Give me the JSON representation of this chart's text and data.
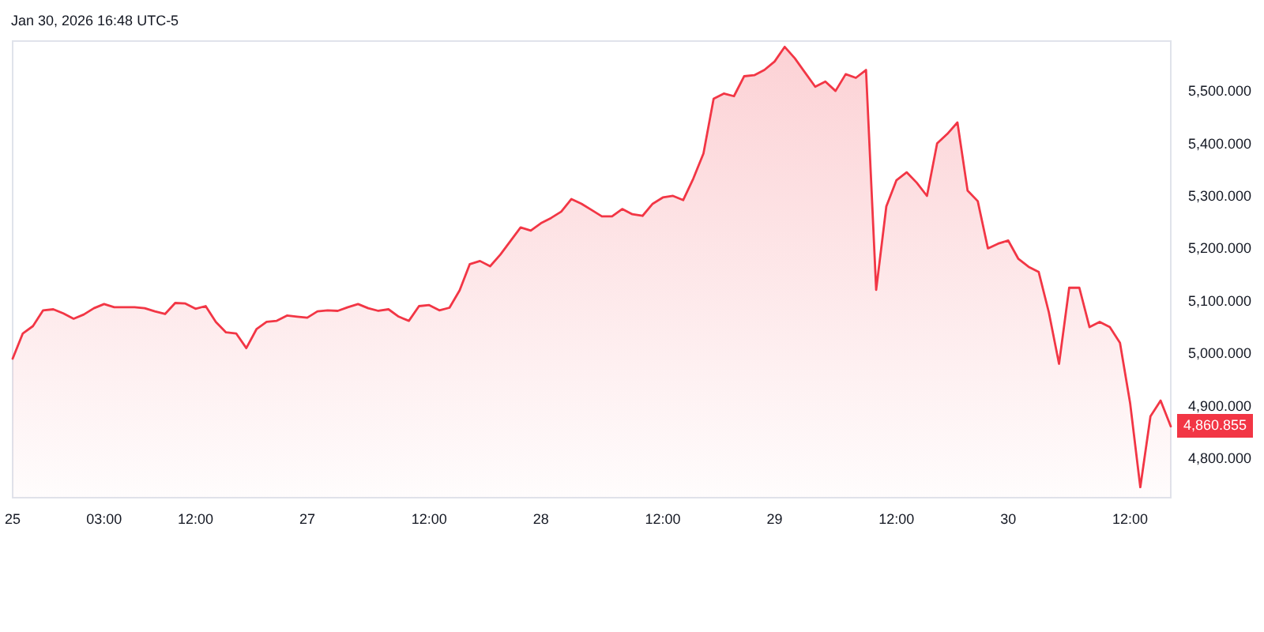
{
  "chart_data": {
    "type": "area",
    "color": "#f23645",
    "marker": "none",
    "annotations": [
      "Jan 30, 2026 16:48 UTC-5",
      "4,860.855"
    ],
    "categories": [
      "25",
      null,
      null,
      null,
      null,
      null,
      null,
      null,
      null,
      "03:00",
      null,
      null,
      null,
      null,
      null,
      null,
      null,
      null,
      "12:00",
      null,
      null,
      null,
      null,
      null,
      null,
      null,
      null,
      null,
      null,
      "27",
      null,
      null,
      null,
      null,
      null,
      null,
      null,
      null,
      null,
      null,
      null,
      "12:00",
      null,
      null,
      null,
      null,
      null,
      null,
      null,
      null,
      null,
      null,
      "28",
      null,
      null,
      null,
      null,
      null,
      null,
      null,
      null,
      null,
      null,
      null,
      "12:00",
      null,
      null,
      null,
      null,
      null,
      null,
      null,
      null,
      null,
      null,
      "29",
      null,
      null,
      null,
      null,
      null,
      null,
      null,
      null,
      null,
      null,
      null,
      "12:00",
      null,
      null,
      null,
      null,
      null,
      null,
      null,
      null,
      null,
      null,
      "30",
      null,
      null,
      null,
      null,
      null,
      null,
      null,
      null,
      null,
      null,
      null,
      "12:00",
      null,
      null,
      null,
      null
    ],
    "values": [
      4990,
      5038,
      5052,
      5082,
      5084,
      5076,
      5066,
      5074,
      5086,
      5094,
      5088,
      5088,
      5088,
      5086,
      5080,
      5075,
      5096,
      5095,
      5085,
      5090,
      5060,
      5040,
      5038,
      5010,
      5046,
      5060,
      5062,
      5072,
      5070,
      5068,
      5080,
      5082,
      5081,
      5088,
      5094,
      5086,
      5081,
      5084,
      5070,
      5062,
      5090,
      5092,
      5082,
      5087,
      5120,
      5170,
      5176,
      5166,
      5188,
      5214,
      5240,
      5234,
      5248,
      5258,
      5270,
      5294,
      5285,
      5273,
      5261,
      5261,
      5275,
      5265,
      5262,
      5285,
      5297,
      5300,
      5292,
      5333,
      5381,
      5485,
      5495,
      5490,
      5528,
      5530,
      5540,
      5556,
      5584,
      5562,
      5535,
      5508,
      5518,
      5500,
      5532,
      5525,
      5540,
      5121,
      5280,
      5330,
      5345,
      5325,
      5300,
      5400,
      5418,
      5440,
      5310,
      5290,
      5200,
      5209,
      5215,
      5180,
      5165,
      5155,
      5078,
      4980,
      5125,
      5125,
      5050,
      5060,
      5050,
      5020,
      4905,
      4745,
      4880,
      4910,
      4861
    ],
    "ylim": [
      4725,
      5595
    ],
    "yticks": [
      {
        "value": 4800,
        "label": "4,800.000"
      },
      {
        "value": 4900,
        "label": "4,900.000"
      },
      {
        "value": 5000,
        "label": "5,000.000"
      },
      {
        "value": 5100,
        "label": "5,100.000"
      },
      {
        "value": 5200,
        "label": "5,200.000"
      },
      {
        "value": 5300,
        "label": "5,300.000"
      },
      {
        "value": 5400,
        "label": "5,400.000"
      },
      {
        "value": 5500,
        "label": "5,500.000"
      }
    ]
  }
}
